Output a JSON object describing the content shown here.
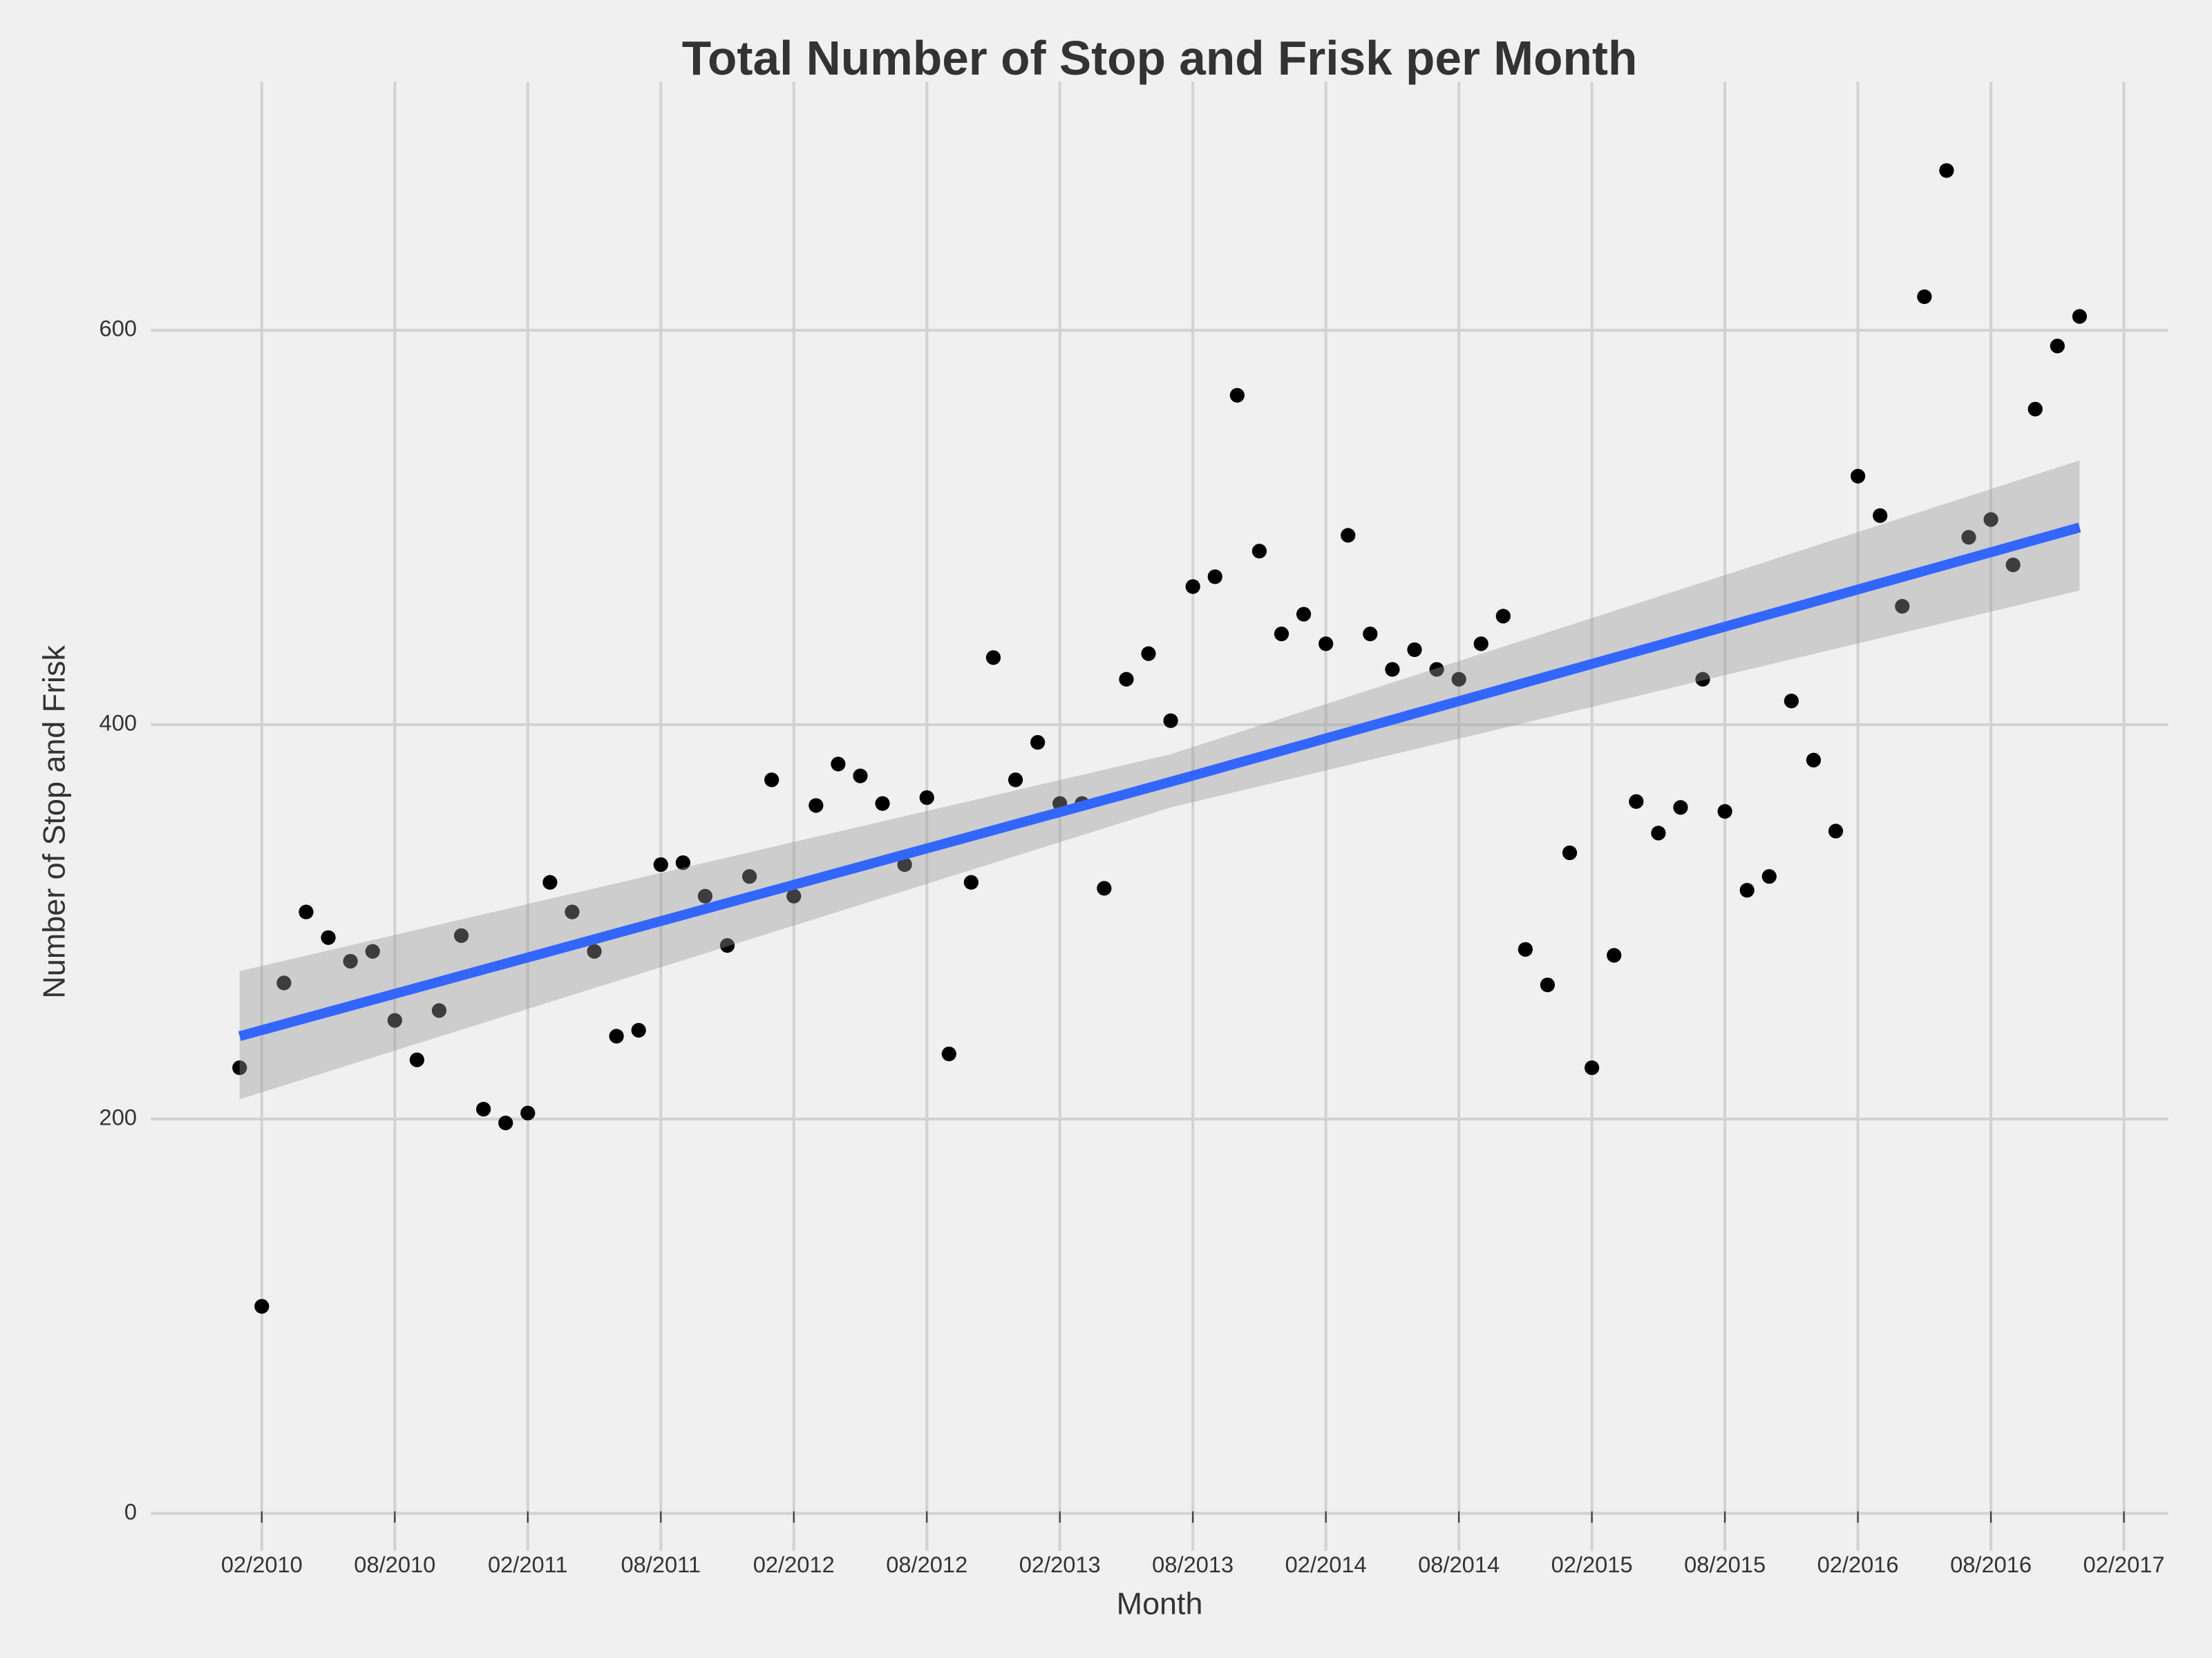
{
  "chart_data": {
    "type": "scatter",
    "title": "Total Number of Stop and Frisk per Month",
    "x_label": "Month",
    "y_label": "Number of Stop and Frisk",
    "x": [
      "01/2010",
      "02/2010",
      "03/2010",
      "04/2010",
      "05/2010",
      "06/2010",
      "07/2010",
      "08/2010",
      "09/2010",
      "10/2010",
      "11/2010",
      "12/2010",
      "01/2011",
      "02/2011",
      "03/2011",
      "04/2011",
      "05/2011",
      "06/2011",
      "07/2011",
      "08/2011",
      "09/2011",
      "10/2011",
      "11/2011",
      "12/2011",
      "01/2012",
      "02/2012",
      "03/2012",
      "04/2012",
      "05/2012",
      "06/2012",
      "07/2012",
      "08/2012",
      "09/2012",
      "10/2012",
      "11/2012",
      "12/2012",
      "01/2013",
      "02/2013",
      "03/2013",
      "04/2013",
      "05/2013",
      "06/2013",
      "07/2013",
      "08/2013",
      "09/2013",
      "10/2013",
      "11/2013",
      "12/2013",
      "01/2014",
      "02/2014",
      "03/2014",
      "04/2014",
      "05/2014",
      "06/2014",
      "07/2014",
      "08/2014",
      "09/2014",
      "10/2014",
      "11/2014",
      "12/2014",
      "01/2015",
      "02/2015",
      "03/2015",
      "04/2015",
      "05/2015",
      "06/2015",
      "07/2015",
      "08/2015",
      "09/2015",
      "10/2015",
      "11/2015",
      "12/2015",
      "01/2016",
      "02/2016",
      "03/2016",
      "04/2016",
      "05/2016",
      "06/2016",
      "07/2016",
      "08/2016",
      "09/2016",
      "10/2016",
      "11/2016",
      "12/2016"
    ],
    "values": [
      226,
      105,
      269,
      305,
      292,
      280,
      285,
      250,
      230,
      255,
      293,
      205,
      198,
      203,
      320,
      305,
      285,
      242,
      245,
      329,
      330,
      313,
      288,
      323,
      372,
      313,
      359,
      380,
      374,
      360,
      329,
      363,
      233,
      320,
      434,
      372,
      391,
      360,
      360,
      317,
      423,
      436,
      402,
      470,
      475,
      567,
      488,
      446,
      456,
      441,
      496,
      446,
      428,
      438,
      428,
      423,
      441,
      455,
      286,
      268,
      335,
      226,
      283,
      361,
      345,
      358,
      423,
      356,
      316,
      323,
      412,
      382,
      346,
      526,
      506,
      460,
      617,
      681,
      495,
      504,
      481,
      560,
      592,
      607
    ],
    "color": "#000000",
    "trend": {
      "x": [
        "01/2010",
        "07/2013",
        "12/2016"
      ],
      "values": [
        242,
        371,
        500
      ],
      "lower": [
        210,
        358,
        468
      ],
      "upper": [
        275,
        385,
        534
      ],
      "color": "#3366ff",
      "band_color": "#999999"
    },
    "xlim": [
      "09/2009",
      "04/2017"
    ],
    "xticks": [
      "02/2010",
      "08/2010",
      "02/2011",
      "08/2011",
      "02/2012",
      "08/2012",
      "02/2013",
      "08/2013",
      "02/2014",
      "08/2014",
      "02/2015",
      "08/2015",
      "02/2016",
      "08/2016",
      "02/2017"
    ],
    "ylim": [
      -19,
      726
    ],
    "yticks": [
      0,
      200,
      400,
      600
    ],
    "grid": true
  }
}
